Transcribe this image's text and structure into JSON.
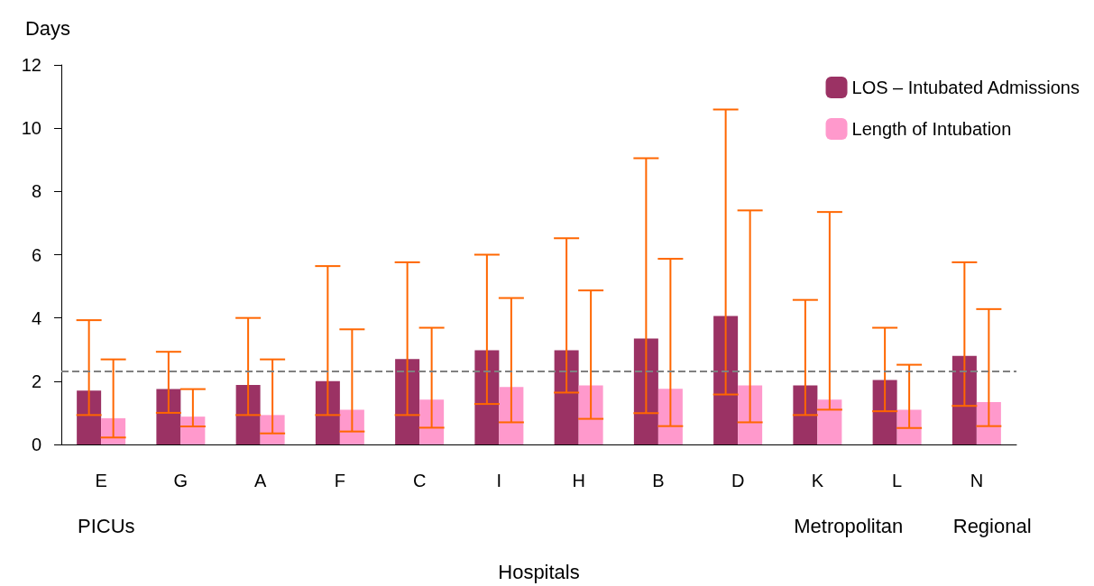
{
  "chart_data": {
    "type": "bar",
    "xlabel": "Hospitals",
    "ylabel": "Days",
    "categories": [
      "E",
      "G",
      "A",
      "F",
      "C",
      "I",
      "H",
      "B",
      "D",
      "K",
      "L",
      "N"
    ],
    "series": [
      {
        "name": "LOS – Intubated Admissions",
        "color": "#9b3264",
        "values": [
          1.7,
          1.75,
          1.88,
          2.0,
          2.7,
          2.98,
          2.98,
          3.35,
          4.06,
          1.87,
          2.04,
          2.8
        ],
        "errors": [
          [
            0.93,
            3.93
          ],
          [
            1.0,
            2.93
          ],
          [
            0.93,
            4.0
          ],
          [
            0.93,
            5.64
          ],
          [
            0.93,
            5.76
          ],
          [
            1.28,
            6.0
          ],
          [
            1.64,
            6.52
          ],
          [
            0.99,
            9.05
          ],
          [
            1.58,
            10.59
          ],
          [
            0.93,
            4.57
          ],
          [
            1.05,
            3.69
          ],
          [
            1.22,
            5.76
          ]
        ]
      },
      {
        "name": "Length of Intubation",
        "color": "#ff99cc",
        "values": [
          0.83,
          0.88,
          0.93,
          1.1,
          1.42,
          1.82,
          1.87,
          1.76,
          1.87,
          1.42,
          1.1,
          1.34
        ],
        "errors": [
          [
            0.22,
            2.69
          ],
          [
            0.57,
            1.75
          ],
          [
            0.35,
            2.69
          ],
          [
            0.41,
            3.64
          ],
          [
            0.53,
            3.69
          ],
          [
            0.7,
            4.63
          ],
          [
            0.81,
            4.87
          ],
          [
            0.58,
            5.87
          ],
          [
            0.7,
            7.4
          ],
          [
            1.1,
            7.35
          ],
          [
            0.52,
            2.52
          ],
          [
            0.58,
            4.28
          ]
        ]
      }
    ],
    "ylim": [
      0,
      12
    ],
    "yticks": [
      0,
      2,
      4,
      6,
      8,
      10,
      12
    ],
    "grid": false,
    "legend": "top right",
    "ref_lines": [
      {
        "axis": "y",
        "value": 2.33,
        "color": "#808080",
        "line_style": "dashed"
      }
    ],
    "annotations": [
      "PICUs",
      "Metropolitan",
      "Regional"
    ]
  }
}
